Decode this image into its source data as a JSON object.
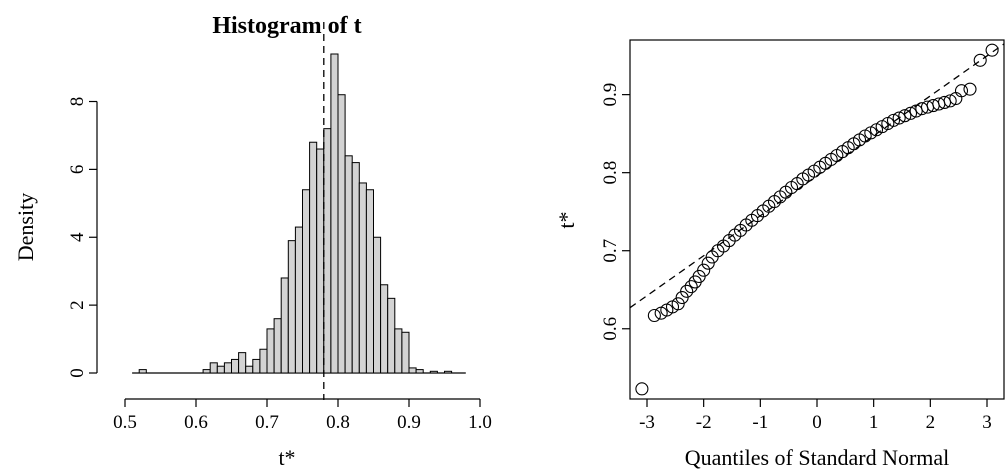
{
  "chart_data": [
    {
      "type": "bar",
      "title": "Histogram of t",
      "xlabel": "t*",
      "ylabel": "Density",
      "xlim": [
        0.5,
        1.0
      ],
      "ylim": [
        0,
        9.4
      ],
      "xticks": [
        "0.5",
        "0.6",
        "0.7",
        "0.8",
        "0.9",
        "1.0"
      ],
      "yticks": [
        "0",
        "2",
        "4",
        "6",
        "8"
      ],
      "bin_width": 0.01,
      "bins": [
        {
          "x0": 0.52,
          "value": 0.1
        },
        {
          "x0": 0.61,
          "value": 0.1
        },
        {
          "x0": 0.62,
          "value": 0.3
        },
        {
          "x0": 0.63,
          "value": 0.2
        },
        {
          "x0": 0.64,
          "value": 0.3
        },
        {
          "x0": 0.65,
          "value": 0.4
        },
        {
          "x0": 0.66,
          "value": 0.6
        },
        {
          "x0": 0.67,
          "value": 0.2
        },
        {
          "x0": 0.68,
          "value": 0.4
        },
        {
          "x0": 0.69,
          "value": 0.7
        },
        {
          "x0": 0.7,
          "value": 1.3
        },
        {
          "x0": 0.71,
          "value": 1.6
        },
        {
          "x0": 0.72,
          "value": 2.8
        },
        {
          "x0": 0.73,
          "value": 3.9
        },
        {
          "x0": 0.74,
          "value": 4.3
        },
        {
          "x0": 0.75,
          "value": 5.4
        },
        {
          "x0": 0.76,
          "value": 6.8
        },
        {
          "x0": 0.77,
          "value": 6.6
        },
        {
          "x0": 0.78,
          "value": 7.2
        },
        {
          "x0": 0.79,
          "value": 9.4
        },
        {
          "x0": 0.8,
          "value": 8.2
        },
        {
          "x0": 0.81,
          "value": 6.4
        },
        {
          "x0": 0.82,
          "value": 6.2
        },
        {
          "x0": 0.83,
          "value": 5.6
        },
        {
          "x0": 0.84,
          "value": 5.4
        },
        {
          "x0": 0.85,
          "value": 4.0
        },
        {
          "x0": 0.86,
          "value": 2.6
        },
        {
          "x0": 0.87,
          "value": 2.2
        },
        {
          "x0": 0.88,
          "value": 1.3
        },
        {
          "x0": 0.89,
          "value": 1.2
        },
        {
          "x0": 0.9,
          "value": 0.15
        },
        {
          "x0": 0.91,
          "value": 0.1
        },
        {
          "x0": 0.93,
          "value": 0.05
        },
        {
          "x0": 0.95,
          "value": 0.05
        }
      ],
      "reference_line_x": 0.78
    },
    {
      "type": "scatter",
      "xlabel": "Quantiles of Standard Normal",
      "ylabel": "t*",
      "xlim": [
        -3.3,
        3.3
      ],
      "ylim": [
        0.51,
        0.97
      ],
      "xticks": [
        "-3",
        "-2",
        "-1",
        "0",
        "1",
        "2",
        "3"
      ],
      "yticks": [
        "0.6",
        "0.7",
        "0.8",
        "0.9"
      ],
      "grid": false,
      "reference_line": {
        "x": [
          -3.3,
          3.3
        ],
        "y": [
          0.627,
          0.965
        ]
      },
      "points": [
        {
          "x": -3.09,
          "y": 0.523
        },
        {
          "x": -2.87,
          "y": 0.617
        },
        {
          "x": -2.75,
          "y": 0.62
        },
        {
          "x": -2.65,
          "y": 0.624
        },
        {
          "x": -2.55,
          "y": 0.628
        },
        {
          "x": -2.45,
          "y": 0.632
        },
        {
          "x": -2.38,
          "y": 0.64
        },
        {
          "x": -2.3,
          "y": 0.648
        },
        {
          "x": -2.22,
          "y": 0.654
        },
        {
          "x": -2.15,
          "y": 0.66
        },
        {
          "x": -2.08,
          "y": 0.667
        },
        {
          "x": -2.0,
          "y": 0.675
        },
        {
          "x": -1.92,
          "y": 0.684
        },
        {
          "x": -1.85,
          "y": 0.692
        },
        {
          "x": -1.75,
          "y": 0.7
        },
        {
          "x": -1.65,
          "y": 0.706
        },
        {
          "x": -1.55,
          "y": 0.713
        },
        {
          "x": -1.45,
          "y": 0.72
        },
        {
          "x": -1.35,
          "y": 0.726
        },
        {
          "x": -1.25,
          "y": 0.733
        },
        {
          "x": -1.15,
          "y": 0.739
        },
        {
          "x": -1.05,
          "y": 0.745
        },
        {
          "x": -0.95,
          "y": 0.751
        },
        {
          "x": -0.85,
          "y": 0.757
        },
        {
          "x": -0.75,
          "y": 0.763
        },
        {
          "x": -0.65,
          "y": 0.769
        },
        {
          "x": -0.55,
          "y": 0.775
        },
        {
          "x": -0.45,
          "y": 0.781
        },
        {
          "x": -0.35,
          "y": 0.786
        },
        {
          "x": -0.25,
          "y": 0.792
        },
        {
          "x": -0.15,
          "y": 0.797
        },
        {
          "x": -0.05,
          "y": 0.802
        },
        {
          "x": 0.05,
          "y": 0.807
        },
        {
          "x": 0.15,
          "y": 0.812
        },
        {
          "x": 0.25,
          "y": 0.817
        },
        {
          "x": 0.35,
          "y": 0.822
        },
        {
          "x": 0.45,
          "y": 0.827
        },
        {
          "x": 0.55,
          "y": 0.832
        },
        {
          "x": 0.65,
          "y": 0.837
        },
        {
          "x": 0.75,
          "y": 0.842
        },
        {
          "x": 0.85,
          "y": 0.847
        },
        {
          "x": 0.95,
          "y": 0.851
        },
        {
          "x": 1.05,
          "y": 0.855
        },
        {
          "x": 1.15,
          "y": 0.859
        },
        {
          "x": 1.25,
          "y": 0.863
        },
        {
          "x": 1.35,
          "y": 0.867
        },
        {
          "x": 1.45,
          "y": 0.87
        },
        {
          "x": 1.55,
          "y": 0.873
        },
        {
          "x": 1.65,
          "y": 0.876
        },
        {
          "x": 1.75,
          "y": 0.879
        },
        {
          "x": 1.85,
          "y": 0.882
        },
        {
          "x": 1.95,
          "y": 0.884
        },
        {
          "x": 2.05,
          "y": 0.886
        },
        {
          "x": 2.15,
          "y": 0.888
        },
        {
          "x": 2.25,
          "y": 0.89
        },
        {
          "x": 2.35,
          "y": 0.892
        },
        {
          "x": 2.45,
          "y": 0.895
        },
        {
          "x": 2.55,
          "y": 0.905
        },
        {
          "x": 2.7,
          "y": 0.907
        },
        {
          "x": 2.88,
          "y": 0.944
        },
        {
          "x": 3.09,
          "y": 0.957
        }
      ]
    }
  ]
}
